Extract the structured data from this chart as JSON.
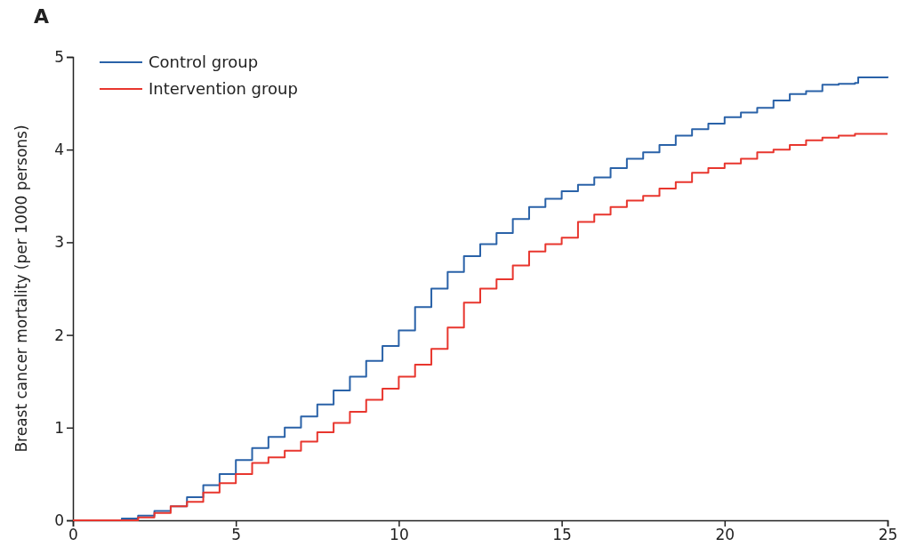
{
  "chart_data": {
    "type": "step",
    "title": "A",
    "ylabel": "Breast cancer mortality (per 1000 persons)",
    "xlim": [
      0,
      25
    ],
    "xticks": [
      0,
      5,
      10,
      15,
      20,
      25
    ],
    "ylim": [
      0,
      5
    ],
    "yticks": [
      0,
      1,
      2,
      3,
      4,
      5
    ],
    "grid": false,
    "legend": "top left",
    "line_style": "solid",
    "marker": "none",
    "series": [
      {
        "name": "Control group",
        "color": "#2a62a8",
        "x": [
          1,
          1.5,
          2,
          2.5,
          3,
          3.5,
          4,
          4.5,
          5,
          5.5,
          6,
          6.5,
          7,
          7.5,
          8,
          8.5,
          9,
          9.5,
          10,
          10.5,
          11,
          11.5,
          12,
          12.5,
          13,
          13.5,
          14,
          14.5,
          15,
          15.5,
          16,
          16.5,
          17,
          17.5,
          18,
          18.5,
          19,
          19.5,
          20,
          20.5,
          21,
          21.5,
          22,
          22.5,
          23,
          23.5,
          24,
          24.1,
          25
        ],
        "values": [
          0,
          0.02,
          0.05,
          0.1,
          0.15,
          0.25,
          0.38,
          0.5,
          0.65,
          0.78,
          0.9,
          1.0,
          1.12,
          1.25,
          1.4,
          1.55,
          1.72,
          1.88,
          2.05,
          2.3,
          2.5,
          2.68,
          2.85,
          2.98,
          3.1,
          3.25,
          3.38,
          3.47,
          3.55,
          3.62,
          3.7,
          3.8,
          3.9,
          3.97,
          4.05,
          4.15,
          4.22,
          4.28,
          4.35,
          4.4,
          4.45,
          4.53,
          4.6,
          4.63,
          4.7,
          4.71,
          4.72,
          4.78,
          4.79
        ]
      },
      {
        "name": "Intervention group",
        "color": "#e8362e",
        "x": [
          0,
          1,
          2,
          2.5,
          3,
          3.5,
          4,
          4.5,
          5,
          5.5,
          6,
          6.5,
          7,
          7.5,
          8,
          8.5,
          9,
          9.5,
          10,
          10.5,
          11,
          11.5,
          12,
          12.5,
          13,
          13.5,
          14,
          14.5,
          15,
          15.5,
          16,
          16.5,
          17,
          17.5,
          18,
          18.5,
          19,
          19.5,
          20,
          20.5,
          21,
          21.5,
          22,
          22.5,
          23,
          23.5,
          24,
          25
        ],
        "values": [
          0,
          0,
          0.03,
          0.08,
          0.15,
          0.2,
          0.3,
          0.4,
          0.5,
          0.62,
          0.68,
          0.75,
          0.85,
          0.95,
          1.05,
          1.17,
          1.3,
          1.42,
          1.55,
          1.68,
          1.85,
          2.08,
          2.35,
          2.5,
          2.6,
          2.75,
          2.9,
          2.98,
          3.05,
          3.22,
          3.3,
          3.38,
          3.45,
          3.5,
          3.58,
          3.65,
          3.75,
          3.8,
          3.85,
          3.9,
          3.97,
          4.0,
          4.05,
          4.1,
          4.13,
          4.15,
          4.17,
          4.17
        ]
      }
    ]
  }
}
